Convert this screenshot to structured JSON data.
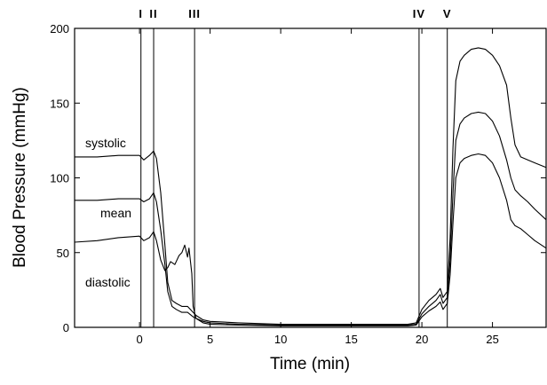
{
  "chart_data": {
    "type": "line",
    "xlabel": "Time (min)",
    "ylabel": "Blood Pressure (mmHg)",
    "xlim": [
      -4.6,
      28.8
    ],
    "ylim": [
      0,
      200
    ],
    "xticks": [
      0,
      5,
      10,
      15,
      20,
      25
    ],
    "yticks": [
      0,
      50,
      100,
      150,
      200
    ],
    "grid": false,
    "series": [
      {
        "name": "systolic",
        "points": [
          [
            -4.6,
            114
          ],
          [
            -3,
            114
          ],
          [
            -1.5,
            115
          ],
          [
            0,
            115
          ],
          [
            0.3,
            112
          ],
          [
            0.7,
            115
          ],
          [
            1.0,
            118
          ],
          [
            1.2,
            113
          ],
          [
            1.5,
            90
          ],
          [
            1.8,
            55
          ],
          [
            2.0,
            30
          ],
          [
            2.3,
            18
          ],
          [
            2.6,
            16
          ],
          [
            3.0,
            14
          ],
          [
            3.4,
            14
          ],
          [
            3.8,
            10
          ],
          [
            4.0,
            8
          ],
          [
            4.5,
            5
          ],
          [
            5,
            4
          ],
          [
            7,
            3
          ],
          [
            10,
            2
          ],
          [
            13,
            2
          ],
          [
            16,
            2
          ],
          [
            19,
            2
          ],
          [
            19.6,
            3
          ],
          [
            20,
            12
          ],
          [
            20.5,
            18
          ],
          [
            21,
            22
          ],
          [
            21.3,
            26
          ],
          [
            21.5,
            20
          ],
          [
            21.8,
            24
          ],
          [
            22.0,
            60
          ],
          [
            22.2,
            120
          ],
          [
            22.4,
            165
          ],
          [
            22.7,
            178
          ],
          [
            23,
            182
          ],
          [
            23.5,
            186
          ],
          [
            24,
            187
          ],
          [
            24.5,
            186
          ],
          [
            25,
            182
          ],
          [
            25.5,
            175
          ],
          [
            26,
            162
          ],
          [
            26.3,
            140
          ],
          [
            26.6,
            122
          ],
          [
            27,
            114
          ],
          [
            27.5,
            112
          ],
          [
            28,
            110
          ],
          [
            28.8,
            107
          ]
        ]
      },
      {
        "name": "mean",
        "points": [
          [
            -4.6,
            85
          ],
          [
            -3,
            85
          ],
          [
            -1.5,
            86
          ],
          [
            0,
            86
          ],
          [
            0.3,
            84
          ],
          [
            0.7,
            86
          ],
          [
            1.0,
            90
          ],
          [
            1.2,
            84
          ],
          [
            1.5,
            65
          ],
          [
            1.8,
            42
          ],
          [
            2.0,
            24
          ],
          [
            2.3,
            14
          ],
          [
            2.6,
            12
          ],
          [
            3.0,
            10
          ],
          [
            3.4,
            10
          ],
          [
            3.8,
            7
          ],
          [
            4.0,
            6
          ],
          [
            4.5,
            4
          ],
          [
            5,
            3
          ],
          [
            7,
            2
          ],
          [
            10,
            1.5
          ],
          [
            13,
            1.5
          ],
          [
            16,
            1.5
          ],
          [
            19,
            1.5
          ],
          [
            19.6,
            2
          ],
          [
            20,
            9
          ],
          [
            20.5,
            14
          ],
          [
            21,
            18
          ],
          [
            21.3,
            22
          ],
          [
            21.5,
            16
          ],
          [
            21.8,
            20
          ],
          [
            22.0,
            45
          ],
          [
            22.2,
            90
          ],
          [
            22.4,
            125
          ],
          [
            22.7,
            136
          ],
          [
            23,
            140
          ],
          [
            23.5,
            143
          ],
          [
            24,
            144
          ],
          [
            24.5,
            143
          ],
          [
            25,
            138
          ],
          [
            25.5,
            128
          ],
          [
            26,
            112
          ],
          [
            26.3,
            100
          ],
          [
            26.6,
            92
          ],
          [
            27,
            88
          ],
          [
            27.5,
            84
          ],
          [
            28,
            79
          ],
          [
            28.8,
            72
          ]
        ]
      },
      {
        "name": "diastolic",
        "points": [
          [
            -4.6,
            57
          ],
          [
            -3,
            58
          ],
          [
            -1.5,
            60
          ],
          [
            0,
            61
          ],
          [
            0.3,
            58
          ],
          [
            0.7,
            60
          ],
          [
            1.0,
            64
          ],
          [
            1.2,
            58
          ],
          [
            1.5,
            45
          ],
          [
            1.8,
            38
          ],
          [
            2.0,
            40
          ],
          [
            2.2,
            44
          ],
          [
            2.5,
            42
          ],
          [
            2.8,
            48
          ],
          [
            3.0,
            50
          ],
          [
            3.2,
            55
          ],
          [
            3.4,
            47
          ],
          [
            3.5,
            53
          ],
          [
            3.7,
            36
          ],
          [
            3.8,
            14
          ],
          [
            4.0,
            6
          ],
          [
            4.5,
            3
          ],
          [
            5,
            2
          ],
          [
            7,
            1.5
          ],
          [
            10,
            1
          ],
          [
            13,
            1
          ],
          [
            16,
            1
          ],
          [
            19,
            1
          ],
          [
            19.6,
            1.5
          ],
          [
            20,
            7
          ],
          [
            20.5,
            11
          ],
          [
            21,
            14
          ],
          [
            21.3,
            17
          ],
          [
            21.5,
            12
          ],
          [
            21.8,
            16
          ],
          [
            22.0,
            35
          ],
          [
            22.2,
            70
          ],
          [
            22.4,
            100
          ],
          [
            22.7,
            110
          ],
          [
            23,
            113
          ],
          [
            23.5,
            115
          ],
          [
            24,
            116
          ],
          [
            24.5,
            115
          ],
          [
            25,
            110
          ],
          [
            25.5,
            100
          ],
          [
            26,
            85
          ],
          [
            26.3,
            72
          ],
          [
            26.6,
            68
          ],
          [
            27,
            66
          ],
          [
            27.5,
            62
          ],
          [
            28,
            58
          ],
          [
            28.8,
            53
          ]
        ]
      }
    ],
    "markers": [
      {
        "label": "I",
        "x": 0.1
      },
      {
        "label": "II",
        "x": 1.0
      },
      {
        "label": "III",
        "x": 3.9
      },
      {
        "label": "IV",
        "x": 19.8
      },
      {
        "label": "V",
        "x": 21.8
      }
    ]
  }
}
